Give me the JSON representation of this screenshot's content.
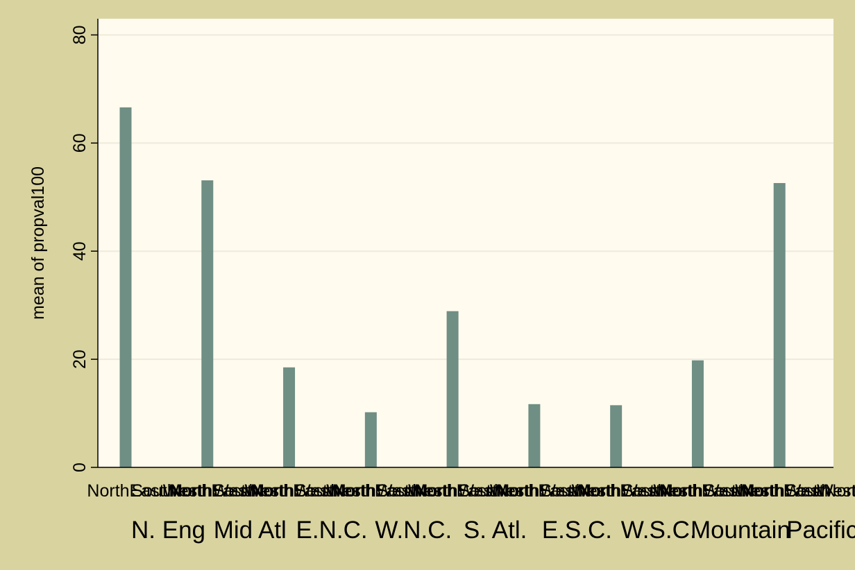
{
  "chart_data": {
    "type": "bar",
    "ylabel": "mean of propval100",
    "xlabel": "",
    "ylim": [
      0,
      83
    ],
    "yticks": [
      0,
      20,
      40,
      60,
      80
    ],
    "grid": true,
    "subgroups": [
      "NorthEast",
      "South",
      "West",
      "NorthWest"
    ],
    "groups": [
      {
        "label": "N. Eng",
        "bars": [
          {
            "sub": "NorthEast",
            "value": 66.6
          }
        ]
      },
      {
        "label": "Mid Atl",
        "bars": [
          {
            "sub": "NorthEast",
            "value": 53.1
          }
        ]
      },
      {
        "label": "E.N.C.",
        "bars": [
          {
            "sub": "NorthEast",
            "value": 18.5
          }
        ]
      },
      {
        "label": "W.N.C.",
        "bars": [
          {
            "sub": "NorthEast",
            "value": 10.2
          }
        ]
      },
      {
        "label": "S. Atl.",
        "bars": [
          {
            "sub": "NorthEast",
            "value": 28.9
          }
        ]
      },
      {
        "label": "E.S.C.",
        "bars": [
          {
            "sub": "NorthEast",
            "value": 11.7
          }
        ]
      },
      {
        "label": "W.S.C.",
        "bars": [
          {
            "sub": "NorthEast",
            "value": 11.5
          }
        ]
      },
      {
        "label": "Mountain",
        "bars": [
          {
            "sub": "NorthEast",
            "value": 19.8
          }
        ]
      },
      {
        "label": "Pacific",
        "bars": [
          {
            "sub": "NorthEast",
            "value": 52.6
          }
        ]
      }
    ],
    "colors": {
      "background": "#d9d3a0",
      "plot_background": "#fffbef",
      "bar": "#6f8e84",
      "grid": "#eeeadc",
      "axis": "#000000"
    }
  }
}
